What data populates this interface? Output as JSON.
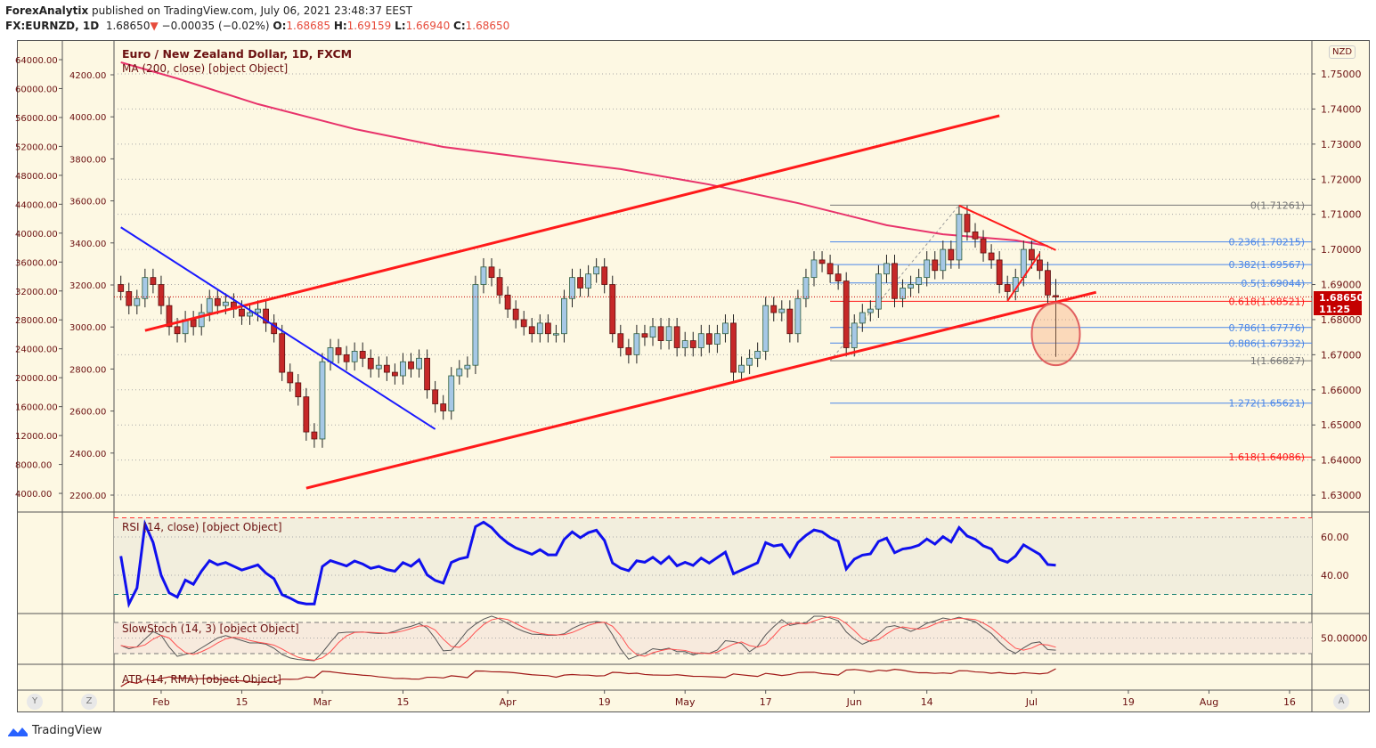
{
  "header": {
    "author": "ForexAnalytix",
    "published": " published on TradingView.com, July 06, 2021 23:48:37 EEST",
    "symbol": "FX:EURNZD, 1D",
    "last": "1.68650",
    "change": "−0.00035 (−0.02%)",
    "o_label": "O:",
    "o": "1.68685",
    "h_label": "H:",
    "h": "1.69159",
    "l_label": "L:",
    "l": "1.66940",
    "c_label": "C:",
    "c": "1.68650"
  },
  "legends": {
    "title": "Euro / New Zealand Dollar, 1D, FXCM",
    "ma": "MA (200, close) [object Object]",
    "rsi": "RSI (14, close) [object Object]",
    "stoch": "SlowStoch (14, 3) [object Object]",
    "atr": "ATR (14, RMA) [object Object]"
  },
  "currency": "NZD",
  "price_tag": {
    "value": "1.68650",
    "countdown": "11:25"
  },
  "buttons": {
    "y": "Y",
    "z": "Z",
    "a": "A"
  },
  "footer": "TradingView",
  "colors": {
    "up": "#a6c8e6",
    "down": "#c62828",
    "ma": "#e8336b",
    "channel": "#ff1a1a",
    "blue_trend": "#1a1aff",
    "fib_blue": "#4a86e8",
    "fib_gray": "#777777",
    "fib_red": "#ff1a1a",
    "rsi": "#1010ee"
  },
  "chart_data": {
    "type": "candlestick",
    "title": "Euro / New Zealand Dollar, 1D, FXCM",
    "start_date": "2021-01-25",
    "closes": [
      1.688,
      1.684,
      1.686,
      1.692,
      1.69,
      1.684,
      1.678,
      1.676,
      1.68,
      1.678,
      1.682,
      1.686,
      1.684,
      1.685,
      1.683,
      1.681,
      1.682,
      1.683,
      1.679,
      1.676,
      1.665,
      1.662,
      1.658,
      1.648,
      1.646,
      1.668,
      1.672,
      1.67,
      1.668,
      1.671,
      1.669,
      1.666,
      1.667,
      1.665,
      1.664,
      1.668,
      1.666,
      1.669,
      1.66,
      1.656,
      1.654,
      1.664,
      1.666,
      1.667,
      1.69,
      1.695,
      1.692,
      1.687,
      1.683,
      1.68,
      1.678,
      1.676,
      1.679,
      1.676,
      1.676,
      1.686,
      1.692,
      1.689,
      1.693,
      1.695,
      1.69,
      1.676,
      1.672,
      1.67,
      1.676,
      1.675,
      1.678,
      1.674,
      1.678,
      1.672,
      1.674,
      1.672,
      1.676,
      1.673,
      1.676,
      1.679,
      1.665,
      1.667,
      1.669,
      1.671,
      1.684,
      1.682,
      1.683,
      1.676,
      1.686,
      1.692,
      1.697,
      1.696,
      1.693,
      1.691,
      1.672,
      1.679,
      1.682,
      1.683,
      1.693,
      1.696,
      1.686,
      1.689,
      1.69,
      1.692,
      1.697,
      1.694,
      1.7,
      1.697,
      1.71,
      1.705,
      1.703,
      1.699,
      1.697,
      1.69,
      1.688,
      1.692,
      1.7,
      1.697,
      1.694,
      1.687,
      1.6865
    ],
    "last_candle": {
      "date": "2021-07-06",
      "open": 1.68685,
      "high": 1.69159,
      "low": 1.6694,
      "close": 1.6865
    },
    "ma200": [
      [
        "2021-01-25",
        1.7533
      ],
      [
        "2021-02-03",
        1.7487
      ],
      [
        "2021-02-17",
        1.7414
      ],
      [
        "2021-03-05",
        1.7343
      ],
      [
        "2021-03-22",
        1.7292
      ],
      [
        "2021-04-08",
        1.7254
      ],
      [
        "2021-04-21",
        1.7229
      ],
      [
        "2021-05-06",
        1.7185
      ],
      [
        "2021-05-21",
        1.7132
      ],
      [
        "2021-06-01",
        1.7092
      ],
      [
        "2021-06-07",
        1.7069
      ],
      [
        "2021-06-16",
        1.7043
      ],
      [
        "2021-06-29",
        1.7026
      ],
      [
        "2021-07-05",
        1.701
      ]
    ],
    "trendlines": [
      {
        "name": "channel-upper",
        "color": "channel",
        "from": [
          "2021-01-28",
          1.6769
        ],
        "to": [
          "2021-06-25",
          1.7381
        ]
      },
      {
        "name": "channel-lower",
        "color": "channel",
        "from": [
          "2021-02-25",
          1.632
        ],
        "to": [
          "2021-07-13",
          1.6878
        ]
      },
      {
        "name": "downtrend-blue",
        "color": "blue_trend",
        "from": [
          "2021-01-25",
          1.7063
        ],
        "to": [
          "2021-03-19",
          1.6488
        ]
      },
      {
        "name": "triangle-upper",
        "color": "channel",
        "from": [
          "2021-06-18",
          1.7125
        ],
        "to": [
          "2021-07-06",
          1.6998
        ]
      },
      {
        "name": "triangle-lower",
        "color": "channel",
        "from": [
          "2021-06-28",
          1.6853
        ],
        "to": [
          "2021-07-02",
          1.6988
        ]
      }
    ],
    "fib": {
      "start_date": "2021-05-27",
      "levels": [
        {
          "label": "0(1.71261)",
          "value": 1.71261,
          "color": "fib_gray"
        },
        {
          "label": "0.236(1.70215)",
          "value": 1.70215,
          "color": "fib_blue"
        },
        {
          "label": "0.382(1.69567)",
          "value": 1.69567,
          "color": "fib_blue"
        },
        {
          "label": "0.5(1.69044)",
          "value": 1.69044,
          "color": "fib_blue"
        },
        {
          "label": "0.618(1.68521)",
          "value": 1.68521,
          "color": "fib_red"
        },
        {
          "label": "0.786(1.67776)",
          "value": 1.67776,
          "color": "fib_blue"
        },
        {
          "label": "0.886(1.67332)",
          "value": 1.67332,
          "color": "fib_blue"
        },
        {
          "label": "1(1.66827)",
          "value": 1.66827,
          "color": "fib_gray"
        },
        {
          "label": "1.272(1.65621)",
          "value": 1.65621,
          "color": "fib_blue"
        },
        {
          "label": "1.618(1.64086)",
          "value": 1.64086,
          "color": "fib_red"
        }
      ]
    },
    "highlight_ellipse": {
      "date": "2021-07-06",
      "price": 1.6759
    },
    "price_axis": [
      "1.75000",
      "1.74000",
      "1.73000",
      "1.72000",
      "1.71000",
      "1.70000",
      "1.69000",
      "1.68000",
      "1.67000",
      "1.66000",
      "1.65000",
      "1.64000",
      "1.63000"
    ],
    "left_axis_1": [
      "64000.00",
      "60000.00",
      "56000.00",
      "52000.00",
      "48000.00",
      "44000.00",
      "40000.00",
      "36000.00",
      "32000.00",
      "28000.00",
      "24000.00",
      "20000.00",
      "16000.00",
      "12000.00",
      "8000.00",
      "4000.00"
    ],
    "left_axis_2": [
      "4200.00",
      "4000.00",
      "3800.00",
      "3600.00",
      "3400.00",
      "3200.00",
      "3000.00",
      "2800.00",
      "2600.00",
      "2400.00",
      "2200.00"
    ],
    "rsi_axis": [
      "60.00",
      "40.00"
    ],
    "stoch_axis": [
      "50.00000"
    ],
    "time_axis": [
      [
        "Feb",
        "2021-02-01"
      ],
      [
        "15",
        "2021-02-15"
      ],
      [
        "Mar",
        "2021-03-01"
      ],
      [
        "15",
        "2021-03-15"
      ],
      [
        "Apr",
        "2021-04-01"
      ],
      [
        "19",
        "2021-04-19"
      ],
      [
        "May",
        "2021-05-03"
      ],
      [
        "17",
        "2021-05-17"
      ],
      [
        "Jun",
        "2021-06-01"
      ],
      [
        "14",
        "2021-06-14"
      ],
      [
        "Jul",
        "2021-07-01"
      ],
      [
        "19",
        "2021-07-19"
      ],
      [
        "Aug",
        "2021-08-02"
      ],
      [
        "16",
        "2021-08-16"
      ]
    ]
  }
}
